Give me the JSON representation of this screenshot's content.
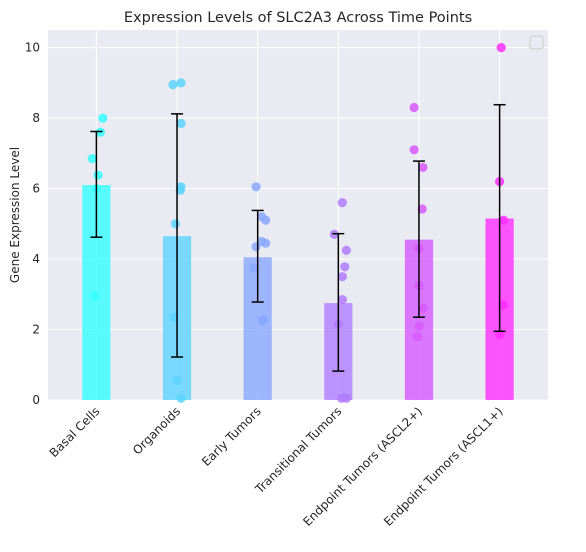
{
  "chart_data": {
    "type": "bar",
    "title": "Expression Levels of SLC2A3 Across Time Points",
    "xlabel": "",
    "ylabel": "Gene Expression Level",
    "ylim": [
      0,
      10.5
    ],
    "yticks": [
      0,
      2,
      4,
      6,
      8,
      10
    ],
    "grid": true,
    "legend_position": "top-right",
    "legend_entries": [],
    "categories": [
      "Basal Cells",
      "Organoids",
      "Early Tumors",
      "Transitional Tumors",
      "Endpoint Tumors (ASCL2+)",
      "Endpoint Tumors (ASCL1+)"
    ],
    "values": [
      6.1,
      4.65,
      4.05,
      2.75,
      4.55,
      5.15
    ],
    "error_low": [
      4.62,
      1.22,
      2.78,
      0.82,
      2.35,
      1.95
    ],
    "error_high": [
      7.62,
      8.12,
      5.38,
      4.72,
      6.78,
      8.38
    ],
    "colors": [
      "#33ffff",
      "#5cd3ff",
      "#8aa8ff",
      "#b07dff",
      "#d659ff",
      "#ff2dff"
    ],
    "points": [
      [
        [
          -0.02,
          2.95
        ],
        [
          -0.05,
          6.85
        ],
        [
          0.02,
          6.38
        ],
        [
          0.05,
          7.6
        ],
        [
          0.08,
          8.0
        ],
        [
          0.0,
          6.0
        ]
      ],
      [
        [
          -0.05,
          8.95
        ],
        [
          0.05,
          9.0
        ],
        [
          0.05,
          7.85
        ],
        [
          0.05,
          6.05
        ],
        [
          0.04,
          5.95
        ],
        [
          -0.02,
          5.0
        ],
        [
          -0.04,
          2.35
        ],
        [
          0.0,
          0.55
        ],
        [
          0.05,
          0.05
        ]
      ],
      [
        [
          -0.02,
          6.05
        ],
        [
          0.05,
          5.2
        ],
        [
          0.1,
          5.1
        ],
        [
          0.05,
          4.5
        ],
        [
          0.1,
          4.45
        ],
        [
          -0.02,
          4.35
        ],
        [
          -0.05,
          3.75
        ],
        [
          0.05,
          2.25
        ],
        [
          0.08,
          2.28
        ]
      ],
      [
        [
          -0.05,
          4.7
        ],
        [
          0.05,
          5.6
        ],
        [
          0.1,
          4.25
        ],
        [
          0.08,
          3.78
        ],
        [
          0.05,
          3.5
        ],
        [
          0.05,
          2.85
        ],
        [
          0.0,
          2.15
        ],
        [
          0.04,
          0.05
        ],
        [
          0.1,
          0.05
        ]
      ],
      [
        [
          -0.06,
          8.3
        ],
        [
          -0.06,
          7.1
        ],
        [
          0.05,
          6.6
        ],
        [
          0.04,
          5.42
        ],
        [
          0.0,
          4.3
        ],
        [
          0.0,
          3.25
        ],
        [
          0.05,
          2.6
        ],
        [
          0.0,
          2.1
        ],
        [
          -0.02,
          1.8
        ]
      ],
      [
        [
          0.02,
          10.0
        ],
        [
          0.0,
          6.2
        ],
        [
          0.05,
          5.1
        ],
        [
          0.05,
          2.7
        ],
        [
          0.0,
          1.85
        ]
      ]
    ]
  }
}
